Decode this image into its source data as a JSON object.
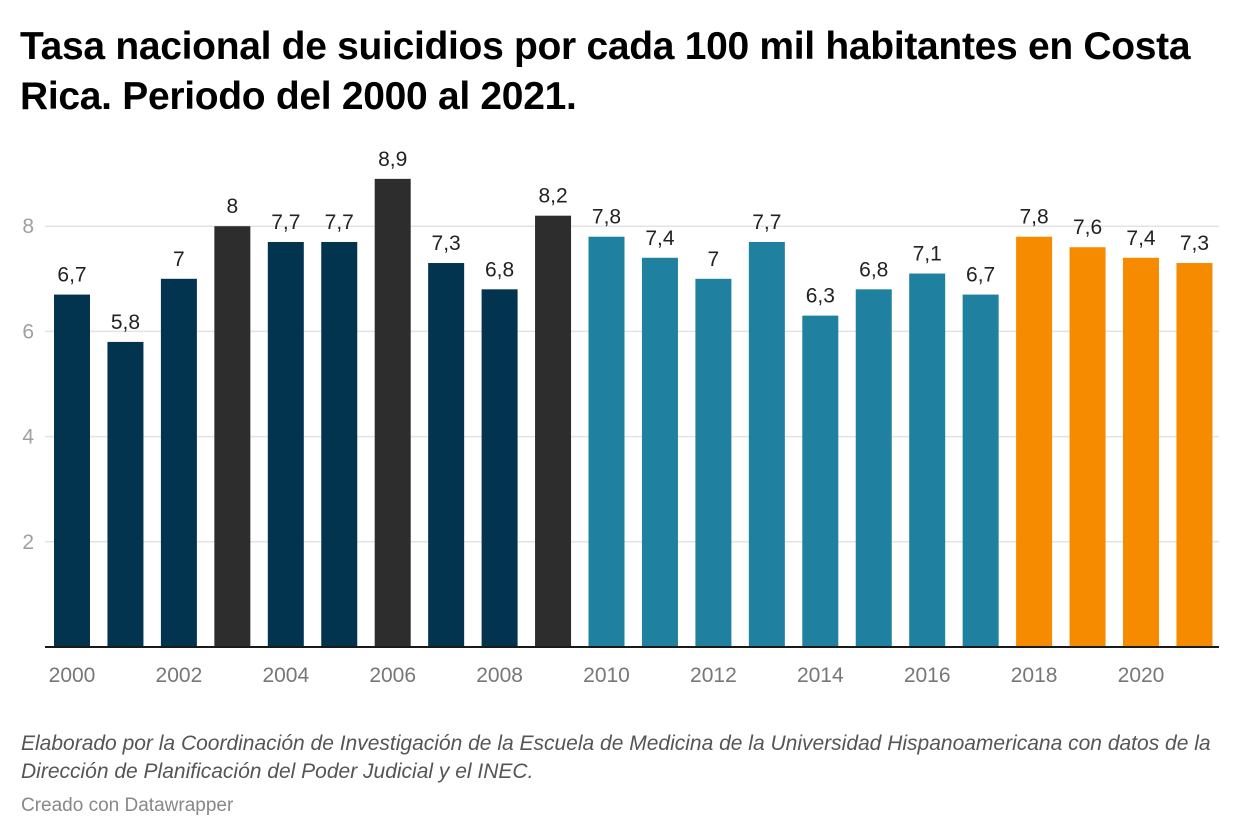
{
  "title": "Tasa nacional de suicidios por cada 100 mil habitantes en Costa Rica. Periodo del 2000 al 2021.",
  "notes": "Elaborado por la Coordinación de Investigación de la Escuela de Medicina de la Universidad Hispanoamericana con datos de la Dirección de Planificación del Poder Judicial y el INEC.",
  "credit": "Creado con Datawrapper",
  "colors": {
    "navy": "#03344f",
    "dark": "#2d2d2d",
    "teal": "#1f80a0",
    "orange": "#f68b00",
    "grid": "#e3e3e3",
    "axis": "#1a1a1a"
  },
  "chart_data": {
    "type": "bar",
    "title": "Tasa nacional de suicidios por cada 100 mil habitantes en Costa Rica. Periodo del 2000 al 2021.",
    "xlabel": "",
    "ylabel": "",
    "ylim": [
      0,
      9
    ],
    "yticks": [
      2,
      4,
      6,
      8
    ],
    "grid": true,
    "legend": "none",
    "categories": [
      "2000",
      "2001",
      "2002",
      "2003",
      "2004",
      "2005",
      "2006",
      "2007",
      "2008",
      "2009",
      "2010",
      "2011",
      "2012",
      "2013",
      "2014",
      "2015",
      "2016",
      "2017",
      "2018",
      "2019",
      "2020",
      "2021"
    ],
    "xtick_labels": [
      "2000",
      "2002",
      "2004",
      "2006",
      "2008",
      "2010",
      "2012",
      "2014",
      "2016",
      "2018",
      "2020"
    ],
    "values": [
      6.7,
      5.8,
      7.0,
      8.0,
      7.7,
      7.7,
      8.9,
      7.3,
      6.8,
      8.2,
      7.8,
      7.4,
      7.0,
      7.7,
      6.3,
      6.8,
      7.1,
      6.7,
      7.8,
      7.6,
      7.4,
      7.3
    ],
    "value_labels": [
      "6,7",
      "5,8",
      "7",
      "8",
      "7,7",
      "7,7",
      "8,9",
      "7,3",
      "6,8",
      "8,2",
      "7,8",
      "7,4",
      "7",
      "7,7",
      "6,3",
      "6,8",
      "7,1",
      "6,7",
      "7,8",
      "7,6",
      "7,4",
      "7,3"
    ],
    "bar_color_groups": [
      "navy",
      "navy",
      "navy",
      "dark",
      "navy",
      "navy",
      "dark",
      "navy",
      "navy",
      "dark",
      "teal",
      "teal",
      "teal",
      "teal",
      "teal",
      "teal",
      "teal",
      "teal",
      "orange",
      "orange",
      "orange",
      "orange"
    ]
  }
}
